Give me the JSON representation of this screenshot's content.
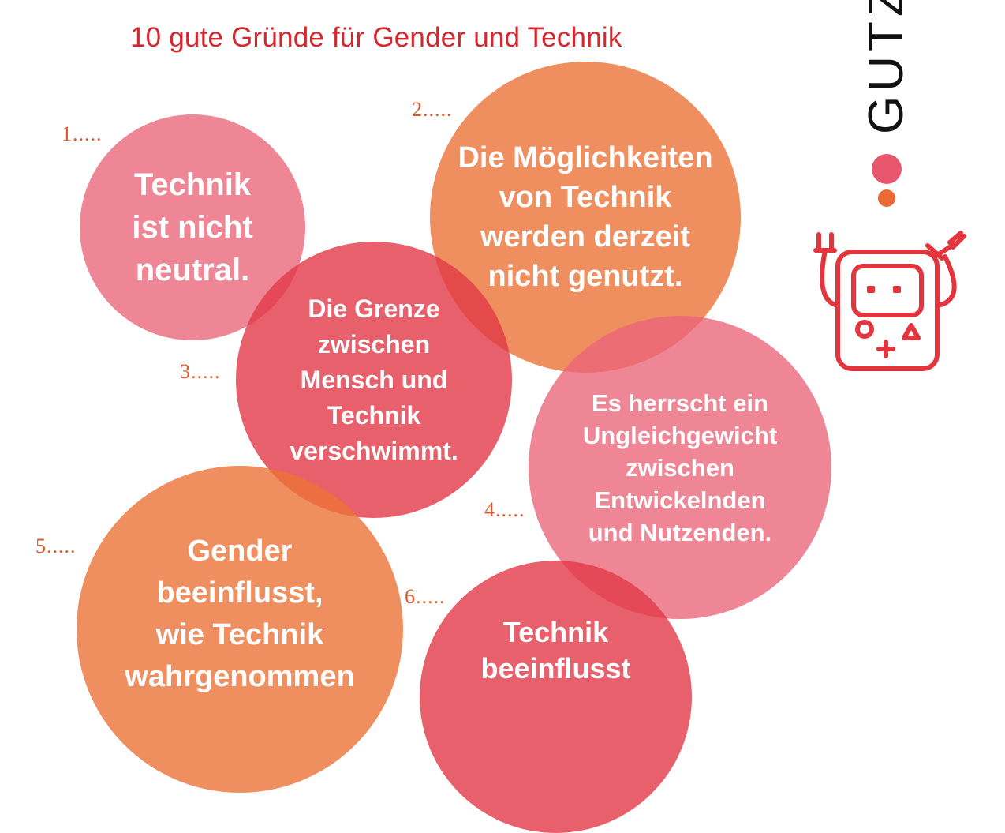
{
  "title": "10 gute Gründe für Gender und Technik",
  "brand": "GUTZ",
  "reasons": [
    {
      "number": "1.....",
      "text": "Technik\nist nicht\nneutral."
    },
    {
      "number": "2.....",
      "text": "Die Möglichkeiten\nvon Technik\nwerden derzeit\nnicht genutzt."
    },
    {
      "number": "3.....",
      "text": "Die Grenze\nzwischen\nMensch und\nTechnik\nverschwimmt."
    },
    {
      "number": "4.....",
      "text": "Es herrscht ein\nUngleichgewicht\nzwischen\nEntwickelnden\nund Nutzenden."
    },
    {
      "number": "5.....",
      "text": "Gender\nbeeinflusst,\nwie Technik\nwahrgenommen"
    },
    {
      "number": "6.....",
      "text": "Technik\nbeeinflusst"
    }
  ],
  "icons": {
    "robot": "robot-icon"
  },
  "colors": {
    "pink": "#ea6478",
    "orange": "#eb7337",
    "red": "#e23846",
    "title": "#d7262d"
  }
}
